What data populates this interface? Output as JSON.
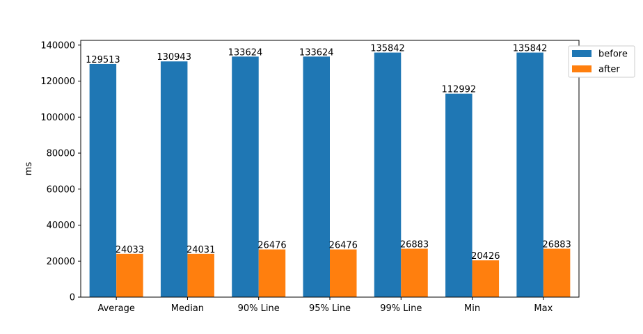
{
  "chart_data": {
    "type": "bar",
    "title": "",
    "xlabel": "",
    "ylabel": "ms",
    "categories": [
      "Average",
      "Median",
      "90% Line",
      "95% Line",
      "99% Line",
      "Min",
      "Max"
    ],
    "series": [
      {
        "name": "before",
        "color": "#1f77b4",
        "values": [
          129513,
          130943,
          133624,
          133624,
          135842,
          112992,
          135842
        ]
      },
      {
        "name": "after",
        "color": "#ff7f0e",
        "values": [
          24033,
          24031,
          26476,
          26476,
          26883,
          20426,
          26883
        ]
      }
    ],
    "ylim": [
      0,
      142634
    ],
    "yticks": [
      0,
      20000,
      40000,
      60000,
      80000,
      100000,
      120000,
      140000
    ],
    "grid": false,
    "legend_position": "top-right, outside plot"
  }
}
